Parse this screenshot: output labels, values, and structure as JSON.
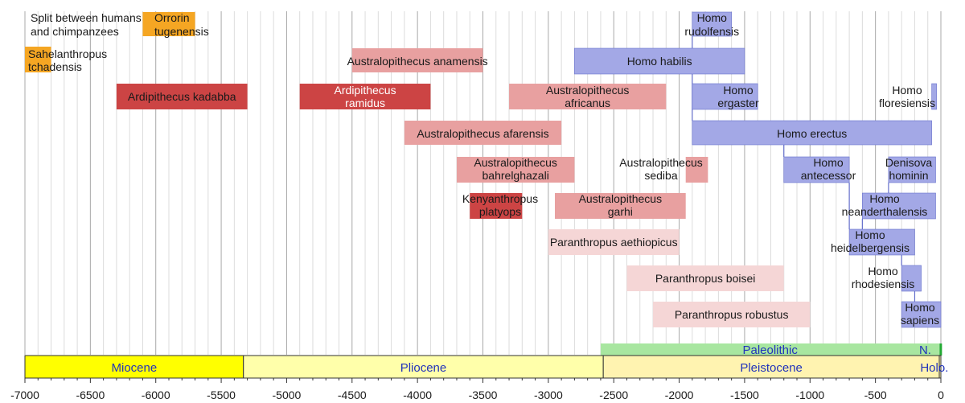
{
  "chart_data": {
    "type": "timeline",
    "x_unit": "thousand years",
    "xlim": [
      -7050,
      10
    ],
    "ticks": [
      -7000,
      -6500,
      -6000,
      -5500,
      -5000,
      -4500,
      -4000,
      -3500,
      -3000,
      -2500,
      -2000,
      -1500,
      -1000,
      -500,
      0
    ],
    "minor_tick_step": 100,
    "colors": {
      "early": "#cc4444",
      "australopith": "#e8a0a0",
      "paranthropus": "#f5d6d6",
      "homo": "#a3a8e6",
      "homo_stroke": "#6670cc",
      "orange": "#f5a623",
      "miocene": "#ffff00",
      "pliocene": "#ffffaa",
      "pleistocene": "#fff3b0",
      "paleolithic": "#a8e6a0",
      "holocene": "#22aa33",
      "grid": "#c8c8c8"
    },
    "species": [
      {
        "name": "Split between humans and chimpanzees",
        "start": null,
        "end": null,
        "group": "note"
      },
      {
        "name": "Orrorin tugenensis",
        "start": -6100,
        "end": -5700,
        "group": "orange"
      },
      {
        "name": "Sahelanthropus tchadensis",
        "start": -7000,
        "end": -6800,
        "group": "orange"
      },
      {
        "name": "Ardipithecus kadabba",
        "start": -6300,
        "end": -5300,
        "group": "early"
      },
      {
        "name": "Ardipithecus ramidus",
        "start": -4900,
        "end": -3900,
        "group": "early"
      },
      {
        "name": "Australopithecus anamensis",
        "start": -4500,
        "end": -3500,
        "group": "australopith"
      },
      {
        "name": "Australopithecus afarensis",
        "start": -4100,
        "end": -2900,
        "group": "australopith"
      },
      {
        "name": "Australopithecus africanus",
        "start": -3300,
        "end": -2100,
        "group": "australopith"
      },
      {
        "name": "Australopithecus bahrelghazali",
        "start": -3700,
        "end": -2800,
        "group": "australopith"
      },
      {
        "name": "Kenyanthropus platyops",
        "start": -3600,
        "end": -3200,
        "group": "early"
      },
      {
        "name": "Australopithecus garhi",
        "start": -2950,
        "end": -1950,
        "group": "australopith"
      },
      {
        "name": "Australopithecus sediba",
        "start": -1950,
        "end": -1780,
        "group": "australopith"
      },
      {
        "name": "Paranthropus aethiopicus",
        "start": -3000,
        "end": -2000,
        "group": "paranthropus"
      },
      {
        "name": "Paranthropus boisei",
        "start": -2400,
        "end": -1200,
        "group": "paranthropus"
      },
      {
        "name": "Paranthropus robustus",
        "start": -2200,
        "end": -1000,
        "group": "paranthropus"
      },
      {
        "name": "Homo rudolfensis",
        "start": -1900,
        "end": -1600,
        "group": "homo"
      },
      {
        "name": "Homo habilis",
        "start": -2800,
        "end": -1500,
        "group": "homo"
      },
      {
        "name": "Homo ergaster",
        "start": -1900,
        "end": -1400,
        "group": "homo"
      },
      {
        "name": "Homo erectus",
        "start": -1900,
        "end": -70,
        "group": "homo"
      },
      {
        "name": "Homo floresiensis",
        "start": -70,
        "end": -50,
        "group": "homo"
      },
      {
        "name": "Homo antecessor",
        "start": -1200,
        "end": -700,
        "group": "homo"
      },
      {
        "name": "Denisova hominin",
        "start": -400,
        "end": -40,
        "group": "homo"
      },
      {
        "name": "Homo neanderthalensis",
        "start": -600,
        "end": -40,
        "group": "homo"
      },
      {
        "name": "Homo heidelbergensis",
        "start": -700,
        "end": -200,
        "group": "homo"
      },
      {
        "name": "Homo rhodesiensis",
        "start": -300,
        "end": -150,
        "group": "homo"
      },
      {
        "name": "Homo sapiens",
        "start": -300,
        "end": 0,
        "group": "homo"
      }
    ],
    "epochs": [
      {
        "name": "Miocene",
        "start": -7050,
        "end": -5330,
        "color": "#ffff00"
      },
      {
        "name": "Pliocene",
        "start": -5330,
        "end": -2580,
        "color": "#ffffaa"
      },
      {
        "name": "Pleistocene",
        "start": -2580,
        "end": -12,
        "color": "#fff3b0"
      },
      {
        "name": "Holo.",
        "start": -12,
        "end": 0,
        "color": "#fff3b0"
      }
    ],
    "ages": [
      {
        "name": "Paleolithic",
        "start": -2600,
        "end": -10
      },
      {
        "name": "N.",
        "start": -10,
        "end": 0
      }
    ]
  }
}
